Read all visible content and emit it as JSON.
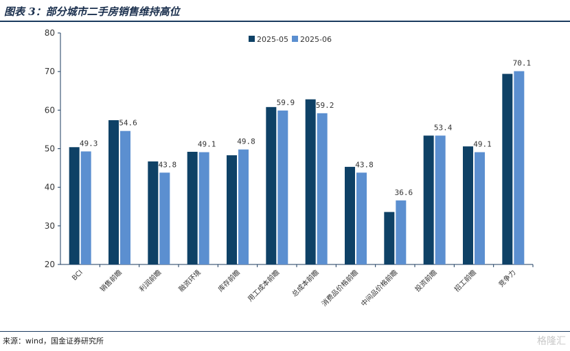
{
  "title": "图表 3：部分城市二手房销售维持高位",
  "source": "来源：wind，国金证券研究所",
  "watermark": "格隆汇",
  "colors": {
    "series1": "#0e4166",
    "series2": "#5b8fd0",
    "axis": "#1a3a5e"
  },
  "chart_data": {
    "type": "bar",
    "title": "",
    "xlabel": "",
    "ylabel": "",
    "ylim": [
      20,
      80
    ],
    "yticks": [
      20,
      30,
      40,
      50,
      60,
      70,
      80
    ],
    "grid": false,
    "legend": "top-center",
    "categories": [
      "BCI",
      "销售前瞻",
      "利润前瞻",
      "融资环境",
      "库存前瞻",
      "用工成本前瞻",
      "总成本前瞻",
      "消费品价格前瞻",
      "中间品价格前瞻",
      "投资前瞻",
      "招工前瞻",
      "竞争力"
    ],
    "series": [
      {
        "name": "2025-05",
        "values": [
          50.4,
          57.4,
          46.7,
          49.2,
          48.3,
          60.8,
          62.8,
          45.3,
          33.6,
          53.4,
          50.6,
          69.4
        ],
        "labels": [
          "",
          "",
          "",
          "",
          "",
          "",
          "",
          "",
          "",
          "",
          "",
          ""
        ]
      },
      {
        "name": "2025-06",
        "values": [
          49.3,
          54.6,
          43.8,
          49.1,
          49.8,
          59.9,
          59.2,
          43.8,
          36.6,
          53.4,
          49.1,
          70.1
        ],
        "labels": [
          "49.3",
          "54.6",
          "43.8",
          "49.1",
          "49.8",
          "59.9",
          "59.2",
          "43.8",
          "36.6",
          "53.4",
          "49.1",
          "70.1"
        ]
      }
    ]
  }
}
